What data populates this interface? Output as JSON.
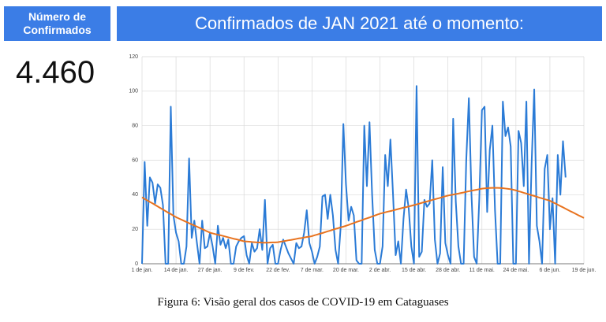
{
  "header": {
    "label": "Número de Confirmados",
    "count": "4.460",
    "banner": "Confirmados de JAN 2021 até o momento:"
  },
  "chart_data": {
    "type": "line",
    "categories": [
      "1 de jan.",
      null,
      null,
      null,
      null,
      null,
      null,
      null,
      null,
      null,
      null,
      null,
      null,
      "14 de jan.",
      null,
      null,
      null,
      null,
      null,
      null,
      null,
      null,
      null,
      null,
      null,
      null,
      "27 de jan.",
      null,
      null,
      null,
      null,
      null,
      null,
      null,
      null,
      null,
      null,
      null,
      null,
      "9 de fev.",
      null,
      null,
      null,
      null,
      null,
      null,
      null,
      null,
      null,
      null,
      null,
      null,
      "22 de fev.",
      null,
      null,
      null,
      null,
      null,
      null,
      null,
      null,
      null,
      null,
      null,
      null,
      "7 de mar.",
      null,
      null,
      null,
      null,
      null,
      null,
      null,
      null,
      null,
      null,
      null,
      null,
      "20 de mar.",
      null,
      null,
      null,
      null,
      null,
      null,
      null,
      null,
      null,
      null,
      null,
      null,
      "2 de abr.",
      null,
      null,
      null,
      null,
      null,
      null,
      null,
      null,
      null,
      null,
      null,
      null,
      "15 de abr.",
      null,
      null,
      null,
      null,
      null,
      null,
      null,
      null,
      null,
      null,
      null,
      null,
      "28 de abr.",
      null,
      null,
      null,
      null,
      null,
      null,
      null,
      null,
      null,
      null,
      null,
      null,
      "11 de mai.",
      null,
      null,
      null,
      null,
      null,
      null,
      null,
      null,
      null,
      null,
      null,
      null,
      "24 de mai.",
      null,
      null,
      null,
      null,
      null,
      null,
      null,
      null,
      null,
      null,
      null,
      null,
      "6 de jun.",
      null,
      null,
      null,
      null,
      null,
      null,
      null,
      null,
      null,
      null,
      null,
      null,
      "19 de jun."
    ],
    "series": [
      {
        "color": "#2b7bd6",
        "values": [
          0,
          59,
          22,
          50,
          47,
          35,
          46,
          44,
          34,
          0,
          0,
          91,
          28,
          18,
          13,
          0,
          0,
          10,
          61,
          15,
          25,
          12,
          0,
          25,
          9,
          10,
          18,
          10,
          0,
          22,
          11,
          15,
          9,
          14,
          0,
          0,
          10,
          13,
          15,
          16,
          5,
          0,
          12,
          7,
          9,
          20,
          8,
          37,
          0,
          9,
          11,
          0,
          0,
          8,
          14,
          10,
          6,
          3,
          0,
          12,
          9,
          10,
          18,
          31,
          12,
          7,
          0,
          4,
          10,
          39,
          40,
          26,
          40,
          28,
          8,
          0,
          22,
          81,
          46,
          25,
          33,
          28,
          2,
          0,
          0,
          80,
          45,
          82,
          40,
          8,
          0,
          0,
          10,
          63,
          45,
          72,
          40,
          5,
          13,
          0,
          26,
          43,
          32,
          10,
          0,
          103,
          4,
          7,
          37,
          33,
          35,
          60,
          14,
          0,
          6,
          56,
          12,
          5,
          0,
          84,
          36,
          10,
          0,
          0,
          60,
          96,
          40,
          4,
          0,
          38,
          89,
          91,
          30,
          66,
          80,
          31,
          0,
          0,
          94,
          74,
          79,
          68,
          0,
          0,
          77,
          70,
          45,
          94,
          0,
          58,
          101,
          22,
          13,
          0,
          55,
          63,
          20,
          38,
          0,
          63,
          40,
          71,
          50,
          null,
          null,
          null,
          null,
          null,
          null,
          null
        ]
      },
      {
        "color": "#e8731f",
        "values": [
          38.5,
          37.6,
          36.7,
          35.8,
          35.0,
          34.1,
          33.2,
          32.3,
          31.4,
          30.5,
          29.6,
          28.8,
          27.9,
          27,
          26.3,
          25.6,
          24.9,
          24.2,
          23.5,
          22.8,
          22.2,
          21.5,
          20.8,
          20.1,
          19.4,
          18.7,
          18,
          17.6,
          17.2,
          16.8,
          16.5,
          16.1,
          15.7,
          15.3,
          14.9,
          14.5,
          14.2,
          13.8,
          13.4,
          13,
          12.9,
          12.8,
          12.6,
          12.5,
          12.4,
          12.3,
          12.2,
          12.2,
          12.2,
          12.3,
          12.4,
          12.4,
          12.5,
          12.8,
          13.0,
          13.3,
          13.6,
          13.8,
          14.1,
          14.4,
          14.7,
          14.9,
          15.2,
          15.5,
          15.7,
          16,
          16.5,
          16.9,
          17.4,
          17.8,
          18.3,
          18.8,
          19.2,
          19.7,
          20.2,
          20.6,
          21.1,
          21.5,
          22,
          22.5,
          23.1,
          23.6,
          24.2,
          24.7,
          25.2,
          25.8,
          26.3,
          26.8,
          27.4,
          27.9,
          28.5,
          29,
          29.4,
          29.8,
          30.2,
          30.5,
          30.9,
          31.3,
          31.7,
          32.1,
          32.5,
          32.8,
          33.2,
          33.6,
          34,
          34.4,
          34.8,
          35.3,
          35.7,
          36.1,
          36.5,
          37.0,
          37.4,
          37.8,
          38.2,
          38.7,
          39.1,
          39.5,
          39.8,
          40.1,
          40.4,
          40.7,
          41.0,
          41.3,
          41.7,
          42.0,
          42.3,
          42.6,
          42.9,
          43.2,
          43.5,
          43.7,
          43.8,
          43.9,
          44,
          44,
          44,
          43.9,
          43.8,
          43.6,
          43.4,
          43.2,
          42.9,
          42.5,
          42.0,
          41.6,
          41.1,
          40.7,
          40.2,
          39.7,
          39.3,
          38.8,
          38.3,
          37.9,
          37.4,
          37.0,
          36.5,
          35.7,
          35.0,
          34.2,
          33.4,
          32.7,
          31.9,
          31.1,
          30.3,
          29.6,
          28.8,
          28.0,
          27.3,
          26.5
        ]
      }
    ],
    "ylim": [
      0,
      120
    ],
    "yticks": [
      0,
      20,
      40,
      60,
      80,
      100,
      120
    ],
    "grid": true
  },
  "caption": "Figura 6:  Visão geral dos casos de COVID-19 em Cataguases"
}
